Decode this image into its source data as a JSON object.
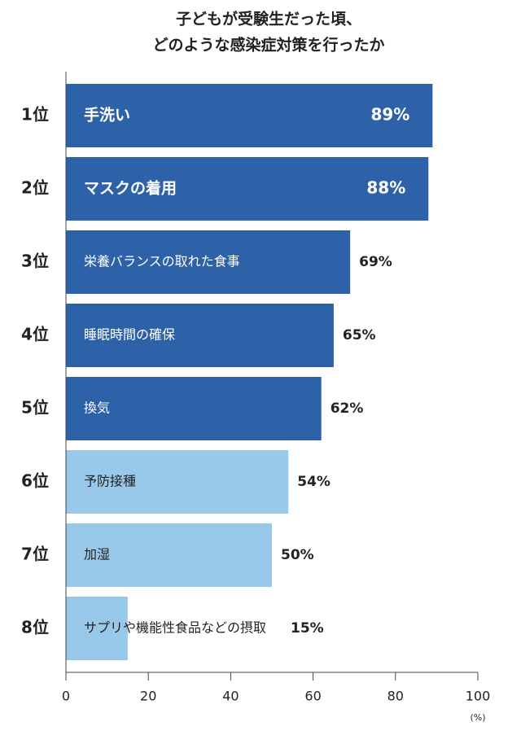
{
  "chart_data": {
    "type": "barh",
    "title": [
      "子どもが受験生だった頃、",
      "どのような感染症対策を行ったか"
    ],
    "categories": [
      "1位",
      "2位",
      "3位",
      "4位",
      "5位",
      "6位",
      "7位",
      "8位"
    ],
    "labels": [
      "手洗い",
      "マスクの着用",
      "栄養バランスの取れた食事",
      "睡眠時間の確保",
      "換気",
      "予防接種",
      "加湿",
      "サプリや機能性食品などの摂取"
    ],
    "values": [
      89,
      88,
      69,
      65,
      62,
      54,
      50,
      15
    ],
    "value_labels": [
      "89%",
      "88%",
      "69%",
      "65%",
      "62%",
      "54%",
      "50%",
      "15%"
    ],
    "colors": [
      "#2e62a8",
      "#2e62a8",
      "#2e62a8",
      "#2e62a8",
      "#2e62a8",
      "#99c9ea",
      "#99c9ea",
      "#99c9ea"
    ],
    "xlim": [
      0,
      100
    ],
    "xticks": [
      0,
      20,
      40,
      60,
      80,
      100
    ],
    "x_unit": "(%)"
  }
}
